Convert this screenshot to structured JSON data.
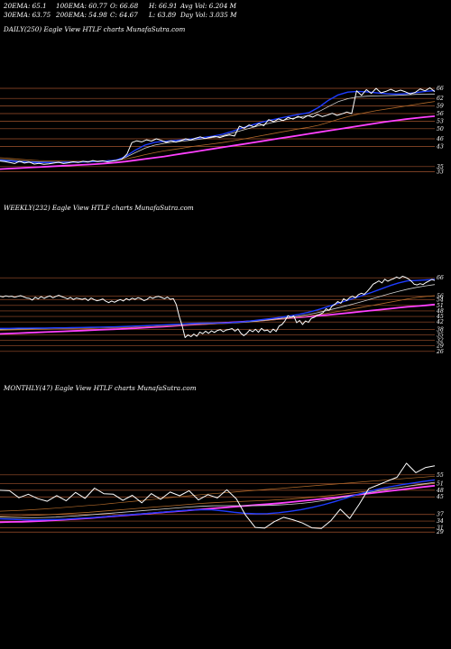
{
  "header": {
    "row1": [
      {
        "key": "ema20",
        "text": "20EMA: 65.1"
      },
      {
        "key": "ema100",
        "text": "100EMA: 60.77"
      },
      {
        "key": "open",
        "text": "O: 66.68"
      },
      {
        "key": "high",
        "text": "H: 66.91"
      },
      {
        "key": "avgvol",
        "text": "Avg Vol: 6.204 M"
      }
    ],
    "row2": [
      {
        "key": "ema30",
        "text": "30EMA: 63.75"
      },
      {
        "key": "ema200",
        "text": "200EMA: 54.98"
      },
      {
        "key": "close",
        "text": "C: 64.67"
      },
      {
        "key": "low",
        "text": "L: 63.89"
      },
      {
        "key": "dayvol",
        "text": "Day Vol: 3.035 M"
      }
    ]
  },
  "colors": {
    "background": "#000000",
    "price": "#ffffff",
    "grid": "#a0522d",
    "ema_fast": "#1e3cff",
    "ema_slow": "#ff40ff",
    "ema_mid": "#d2d2d2",
    "ema_brown": "#b26a2a"
  },
  "chart_data": [
    {
      "type": "line",
      "title": "DAILY(250) Eagle  View  HTLF charts MunafaSutra.com",
      "timeframe": "DAILY(250)",
      "price_levels": [
        "66",
        "62",
        "59",
        "56",
        "53",
        "50",
        "46",
        "43",
        "35",
        "33"
      ],
      "price_points": [
        37.2,
        37,
        36.6,
        36.2,
        37.1,
        36.4,
        36.8,
        36,
        36.3,
        35.9,
        36.1,
        36.4,
        36.7,
        36.2,
        36.5,
        36.9,
        36.6,
        37.1,
        36.8,
        37.4,
        37,
        37.3,
        36.9,
        37.2,
        37.5,
        38,
        40,
        44.5,
        45.2,
        44.8,
        45.6,
        45.1,
        46,
        45.4,
        44.6,
        45.2,
        44.7,
        45.3,
        46,
        45.5,
        46.2,
        46.8,
        46.1,
        46.6,
        47,
        46.5,
        47.1,
        47.5,
        47.1,
        51,
        50.2,
        51.5,
        50.7,
        52,
        51.2,
        53.6,
        52.8,
        53.9,
        53.2,
        54.5,
        53.8,
        54.9,
        54.1,
        55.2,
        54.6,
        55.6,
        54.8,
        55.4,
        56.1,
        55.3,
        55.9,
        56.6,
        56,
        65,
        63.2,
        65.5,
        64,
        66,
        64.2,
        64.8,
        65.6,
        64.7,
        65.3,
        64.6,
        63.8,
        64.4,
        65.8,
        65,
        66.2,
        64.67
      ],
      "ema_fast": [
        37.5,
        37.2,
        36.9,
        36.7,
        36.6,
        36.6,
        36.6,
        36.7,
        36.8,
        36.9,
        37,
        37.2,
        37.5,
        39,
        41.5,
        43.5,
        44.6,
        45,
        45.3,
        45.6,
        46,
        46.5,
        47,
        47.8,
        48.9,
        50.2,
        51.4,
        52.5,
        53.4,
        54.2,
        55,
        55.7,
        56.4,
        58.5,
        61.3,
        63.4,
        64.5,
        64.8,
        64.6,
        64.2,
        63.9,
        63.7,
        63.9,
        64.3,
        64.8,
        65.1
      ],
      "ema_mid": [
        37.8,
        37.5,
        37.2,
        37,
        36.9,
        36.8,
        36.8,
        36.8,
        36.9,
        37,
        37.1,
        37.3,
        37.6,
        38.6,
        40.5,
        42.3,
        43.5,
        44.2,
        44.7,
        45.1,
        45.5,
        46,
        46.5,
        47.2,
        48.2,
        49.3,
        50.4,
        51.4,
        52.3,
        53.1,
        53.9,
        54.6,
        55.3,
        56.8,
        58.8,
        60.7,
        61.9,
        62.6,
        62.9,
        63,
        63.1,
        63.2,
        63.4,
        63.6,
        63.7,
        63.75
      ],
      "ema_brown": [
        38.5,
        38.2,
        37.9,
        37.6,
        37.4,
        37.3,
        37.2,
        37.1,
        37.1,
        37.1,
        37.2,
        37.3,
        37.5,
        38,
        38.8,
        39.7,
        40.5,
        41.2,
        41.8,
        42.4,
        43,
        43.5,
        44,
        44.5,
        45.1,
        45.8,
        46.5,
        47.2,
        47.9,
        48.6,
        49.3,
        50,
        50.6,
        51.4,
        52.5,
        53.7,
        54.8,
        55.7,
        56.5,
        57.2,
        57.8,
        58.4,
        59,
        59.6,
        60.2,
        60.77
      ],
      "ema_slow": [
        34,
        34.2,
        34.4,
        34.6,
        34.8,
        35,
        35.2,
        35.4,
        35.6,
        35.8,
        36,
        36.3,
        36.6,
        37,
        37.5,
        38,
        38.5,
        39,
        39.6,
        40.2,
        40.8,
        41.4,
        42,
        42.6,
        43.2,
        43.8,
        44.4,
        45,
        45.6,
        46.2,
        46.8,
        47.4,
        48,
        48.6,
        49.2,
        49.8,
        50.4,
        51,
        51.6,
        52.2,
        52.8,
        53.3,
        53.8,
        54.2,
        54.6,
        54.98
      ]
    },
    {
      "type": "line",
      "title": "WEEKLY(232) Eagle  View  HTLF charts MunafaSutra.com",
      "timeframe": "WEEKLY(232)",
      "price_levels": [
        "66",
        "56",
        "54",
        "51",
        "48",
        "45",
        "42",
        "38",
        "35",
        "32",
        "29",
        "26"
      ],
      "price_points": [
        56,
        55.6,
        56.2,
        55.8,
        56,
        55.4,
        55.9,
        56.3,
        55.7,
        55,
        54.8,
        53.9,
        55.4,
        54.5,
        55.8,
        54.8,
        55.6,
        56.2,
        55.1,
        55.9,
        56.5,
        55.8,
        55.2,
        54.5,
        55.3,
        54.2,
        55,
        54.6,
        54.3,
        54.8,
        53.6,
        55,
        54.2,
        53.5,
        53.9,
        54.5,
        53.3,
        52.5,
        53.4,
        52.7,
        53.6,
        54.2,
        53.4,
        54.7,
        53.9,
        54.9,
        54.3,
        55.2,
        54.6,
        53.6,
        54.2,
        55.5,
        54.8,
        55.6,
        55.9,
        55.3,
        54.6,
        55.5,
        54.3,
        54.7,
        51.5,
        45,
        40,
        33.5,
        35,
        34,
        35.4,
        34.2,
        36.5,
        35.6,
        37,
        35.8,
        37.2,
        36.3,
        37.4,
        37.8,
        36.7,
        37.6,
        37.9,
        38.4,
        37,
        38.2,
        35.8,
        34.6,
        35.8,
        37.6,
        36.7,
        38,
        36.4,
        38.5,
        37.2,
        37.6,
        36.3,
        38.1,
        36.8,
        39.8,
        40.6,
        42.6,
        45.4,
        44.5,
        45.2,
        41.6,
        42.8,
        40.6,
        42.5,
        41.8,
        44,
        44.6,
        45.6,
        46.2,
        47.1,
        49.2,
        48.3,
        50.5,
        51.6,
        53.1,
        52.1,
        54.6,
        53.6,
        55.2,
        56,
        55.1,
        56.8,
        57.6,
        57,
        58.6,
        60.4,
        62.5,
        63.4,
        64.3,
        63.2,
        65.2,
        64.1,
        64.9,
        65.5,
        66.4,
        65.7,
        66.8,
        66.3,
        65.4,
        64.2,
        62.5,
        62.1,
        62.8,
        62.3,
        63.4,
        64.2,
        65.1,
        64.5
      ],
      "ema_fast": [
        38.5,
        38.5,
        38.6,
        38.6,
        38.7,
        38.7,
        38.8,
        38.8,
        38.9,
        39,
        39.1,
        39.2,
        39.3,
        39.4,
        39.6,
        39.8,
        40,
        40.2,
        40.4,
        40.6,
        40.8,
        41.1,
        41.3,
        41.4,
        41.4,
        41.5,
        41.8,
        42.2,
        42.7,
        43.3,
        43.9,
        44.6,
        45.3,
        46.1,
        47.2,
        48.5,
        50,
        51.6,
        53.2,
        54.8,
        56.4,
        58,
        59.8,
        61.6,
        63.2,
        64.3,
        64.5,
        64.8,
        65.1
      ],
      "ema_mid": [
        38,
        38.1,
        38.2,
        38.3,
        38.4,
        38.5,
        38.6,
        38.7,
        38.8,
        38.9,
        39,
        39.1,
        39.2,
        39.3,
        39.5,
        39.7,
        39.9,
        40.1,
        40.3,
        40.5,
        40.7,
        40.9,
        41.1,
        41.2,
        41.3,
        41.4,
        41.6,
        41.9,
        42.3,
        42.8,
        43.3,
        43.9,
        44.5,
        45.2,
        46,
        47,
        48.1,
        49.3,
        50.5,
        51.8,
        53.1,
        54.5,
        55.9,
        57.3,
        58.6,
        59.8,
        60.8,
        61.6,
        62.3
      ],
      "ema_brown": [
        37.5,
        37.6,
        37.7,
        37.8,
        37.9,
        38,
        38.1,
        38.2,
        38.3,
        38.4,
        38.5,
        38.6,
        38.7,
        38.8,
        39,
        39.2,
        39.4,
        39.6,
        39.8,
        40,
        40.2,
        40.4,
        40.6,
        40.8,
        41,
        41.2,
        41.5,
        41.8,
        42.2,
        42.6,
        43,
        43.5,
        44,
        44.6,
        45.2,
        45.9,
        46.6,
        47.4,
        48.2,
        49.1,
        50,
        50.9,
        51.8,
        52.7,
        53.6,
        54.5,
        55.3,
        55.9,
        56.3
      ],
      "ema_slow": [
        35.5,
        35.7,
        35.9,
        36.1,
        36.3,
        36.5,
        36.7,
        36.9,
        37.1,
        37.3,
        37.5,
        37.7,
        37.9,
        38.1,
        38.3,
        38.6,
        38.9,
        39.2,
        39.5,
        39.8,
        40.1,
        40.4,
        40.7,
        41,
        41.3,
        41.6,
        41.9,
        42.2,
        42.5,
        42.9,
        43.3,
        43.7,
        44.1,
        44.5,
        44.9,
        45.3,
        45.7,
        46.2,
        46.7,
        47.2,
        47.7,
        48.2,
        48.7,
        49.2,
        49.7,
        50.2,
        50.6,
        51,
        51.5
      ]
    },
    {
      "type": "line",
      "title": "MONTHLY(47) Eagle  View  HTLF charts MunafaSutra.com",
      "timeframe": "MONTHLY(47)",
      "price_levels": [
        "55",
        "51",
        "48",
        "45",
        "37",
        "34",
        "31",
        "29"
      ],
      "price_points": [
        48,
        47.8,
        44.6,
        46.2,
        44.2,
        43,
        45.6,
        43.2,
        47,
        44.3,
        49,
        46.4,
        46.2,
        43.4,
        45.7,
        42.3,
        46.5,
        43.9,
        47.2,
        45.5,
        47.8,
        43.6,
        46,
        44.5,
        48.2,
        44.1,
        36.6,
        31.1,
        30.8,
        33.7,
        35.7,
        34.6,
        33.1,
        30.9,
        30.6,
        34.1,
        39.4,
        35.2,
        41.6,
        48.7,
        50.4,
        52.2,
        53.9,
        60.3,
        56,
        58.3,
        59.1
      ],
      "ema_fast": [
        35,
        34.8,
        34.6,
        34.5,
        34.6,
        34.7,
        34.9,
        35.2,
        35.5,
        35.8,
        36.2,
        36.6,
        37,
        37.4,
        37.8,
        38.2,
        38.6,
        39,
        39.2,
        39.1,
        38.6,
        38,
        37.5,
        37.3,
        37.4,
        37.8,
        38.4,
        39.2,
        40.2,
        41.4,
        42.8,
        44.4,
        46,
        47.4,
        48.6,
        49.6,
        50.5,
        51.3,
        52,
        52.7
      ],
      "ema_mid": [
        35.8,
        35.6,
        35.5,
        35.5,
        35.6,
        35.8,
        36.1,
        36.4,
        36.8,
        37.2,
        37.6,
        38,
        38.4,
        38.8,
        39.2,
        39.6,
        40,
        40.4,
        40.7,
        40.9,
        41,
        41,
        41,
        41,
        41.1,
        41.3,
        41.6,
        42,
        42.6,
        43.3,
        44.1,
        45,
        46,
        46.9,
        47.8,
        48.6,
        49.4,
        50.2,
        50.9,
        51.6
      ],
      "ema_brown": [
        36.2,
        36.3,
        36.4,
        36.6,
        36.8,
        37.1,
        37.4,
        37.7,
        38,
        38.4,
        38.8,
        39.2,
        39.6,
        40,
        40.4,
        40.8,
        41.2,
        41.6,
        42,
        42.3,
        42.6,
        42.8,
        43,
        43.2,
        43.4,
        43.7,
        44,
        44.4,
        44.8,
        45.3,
        45.8,
        46.4,
        47,
        47.6,
        48.2,
        48.8,
        49.4,
        50,
        50.6,
        51.2
      ],
      "ema_slow": [
        33.5,
        33.6,
        33.7,
        33.9,
        34.1,
        34.4,
        34.7,
        35,
        35.3,
        35.7,
        36.1,
        36.5,
        36.9,
        37.3,
        37.7,
        38.1,
        38.5,
        38.9,
        39.3,
        39.7,
        40.1,
        40.5,
        40.9,
        41.3,
        41.7,
        42.1,
        42.6,
        43.1,
        43.6,
        44.1,
        44.7,
        45.3,
        45.9,
        46.5,
        47.1,
        47.7,
        48.3,
        48.9,
        49.5,
        50.1
      ],
      "ema_extra": [
        38.5,
        38.7,
        38.9,
        39.2,
        39.5,
        39.9,
        40.3,
        40.7,
        41.1,
        41.5,
        42,
        42.5,
        43,
        43.5,
        44,
        44.5,
        45,
        45.5,
        46,
        46.4,
        46.8,
        47.2,
        47.6,
        48,
        48.4,
        48.8,
        49.2,
        49.6,
        50,
        50.4,
        50.8,
        51.2,
        51.6,
        52,
        52.4,
        52.8,
        53.2,
        53.6,
        54,
        54.4
      ]
    }
  ]
}
